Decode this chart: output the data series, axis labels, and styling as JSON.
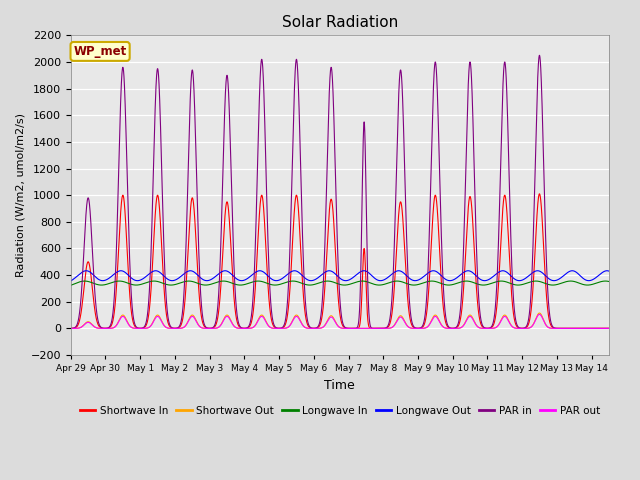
{
  "title": "Solar Radiation",
  "ylabel": "Radiation (W/m2, umol/m2/s)",
  "xlabel": "Time",
  "ylim": [
    -200,
    2200
  ],
  "yticks": [
    -200,
    0,
    200,
    400,
    600,
    800,
    1000,
    1200,
    1400,
    1600,
    1800,
    2000,
    2200
  ],
  "bg_color": "#dcdcdc",
  "plot_bg": "#e8e8e8",
  "legend_labels": [
    "Shortwave In",
    "Shortwave Out",
    "Longwave In",
    "Longwave Out",
    "PAR in",
    "PAR out"
  ],
  "legend_colors": [
    "red",
    "orange",
    "green",
    "blue",
    "purple",
    "magenta"
  ],
  "annotation_text": "WP_met",
  "annotation_bg": "#ffffcc",
  "annotation_border": "#ccaa00"
}
